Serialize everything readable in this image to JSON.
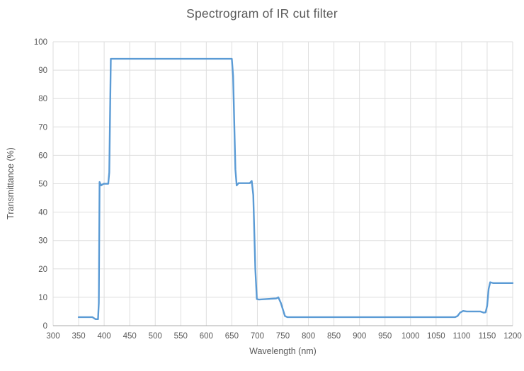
{
  "chart_data": {
    "type": "line",
    "title": "Spectrogram of IR cut filter",
    "xlabel": "Wavelength (nm)",
    "ylabel": "Transmittance (%)",
    "xlim": [
      300,
      1200
    ],
    "ylim": [
      0,
      100
    ],
    "x_ticks": [
      300,
      350,
      400,
      450,
      500,
      550,
      600,
      650,
      700,
      750,
      800,
      850,
      900,
      950,
      1000,
      1050,
      1100,
      1150,
      1200
    ],
    "y_ticks": [
      0,
      10,
      20,
      30,
      40,
      50,
      60,
      70,
      80,
      90,
      100
    ],
    "grid": true,
    "legend_position": "none",
    "colors": {
      "line": "#5B9BD5",
      "grid": "#DEDEDE",
      "axis": "#ABABAB",
      "tick_text": "#595959",
      "title_text": "#595959",
      "background": "#FFFFFF"
    },
    "series": [
      {
        "name": "Transmittance",
        "color": "#5B9BD5",
        "points": [
          [
            350,
            3
          ],
          [
            377,
            3
          ],
          [
            383,
            2.3
          ],
          [
            388,
            2.3
          ],
          [
            389.5,
            8
          ],
          [
            391,
            50.6
          ],
          [
            394,
            49.4
          ],
          [
            399,
            50
          ],
          [
            408,
            50
          ],
          [
            410,
            54
          ],
          [
            413,
            94
          ],
          [
            650,
            94
          ],
          [
            652.5,
            88
          ],
          [
            657,
            55
          ],
          [
            659.5,
            49.4
          ],
          [
            663,
            50.2
          ],
          [
            685,
            50.2
          ],
          [
            689,
            51
          ],
          [
            692,
            46
          ],
          [
            696,
            20
          ],
          [
            699,
            9.4
          ],
          [
            703,
            9.2
          ],
          [
            737,
            9.6
          ],
          [
            741,
            10
          ],
          [
            746,
            8
          ],
          [
            754,
            3.4
          ],
          [
            759,
            3
          ],
          [
            1087,
            3
          ],
          [
            1092,
            3.4
          ],
          [
            1097,
            4.6
          ],
          [
            1103,
            5.2
          ],
          [
            1110,
            5
          ],
          [
            1137,
            5
          ],
          [
            1143,
            4.6
          ],
          [
            1147,
            4.7
          ],
          [
            1150,
            7
          ],
          [
            1153,
            13
          ],
          [
            1156,
            15.3
          ],
          [
            1162,
            15
          ],
          [
            1200,
            15
          ]
        ]
      }
    ],
    "plateau_summary": {
      "baseline_pct": 3,
      "left_step_pct": 50,
      "passband_pct": 94,
      "right_step_pct": 50,
      "ir_shelf_pct": 9.5,
      "step_1100_pct": 5,
      "step_1150_pct": 15
    }
  }
}
